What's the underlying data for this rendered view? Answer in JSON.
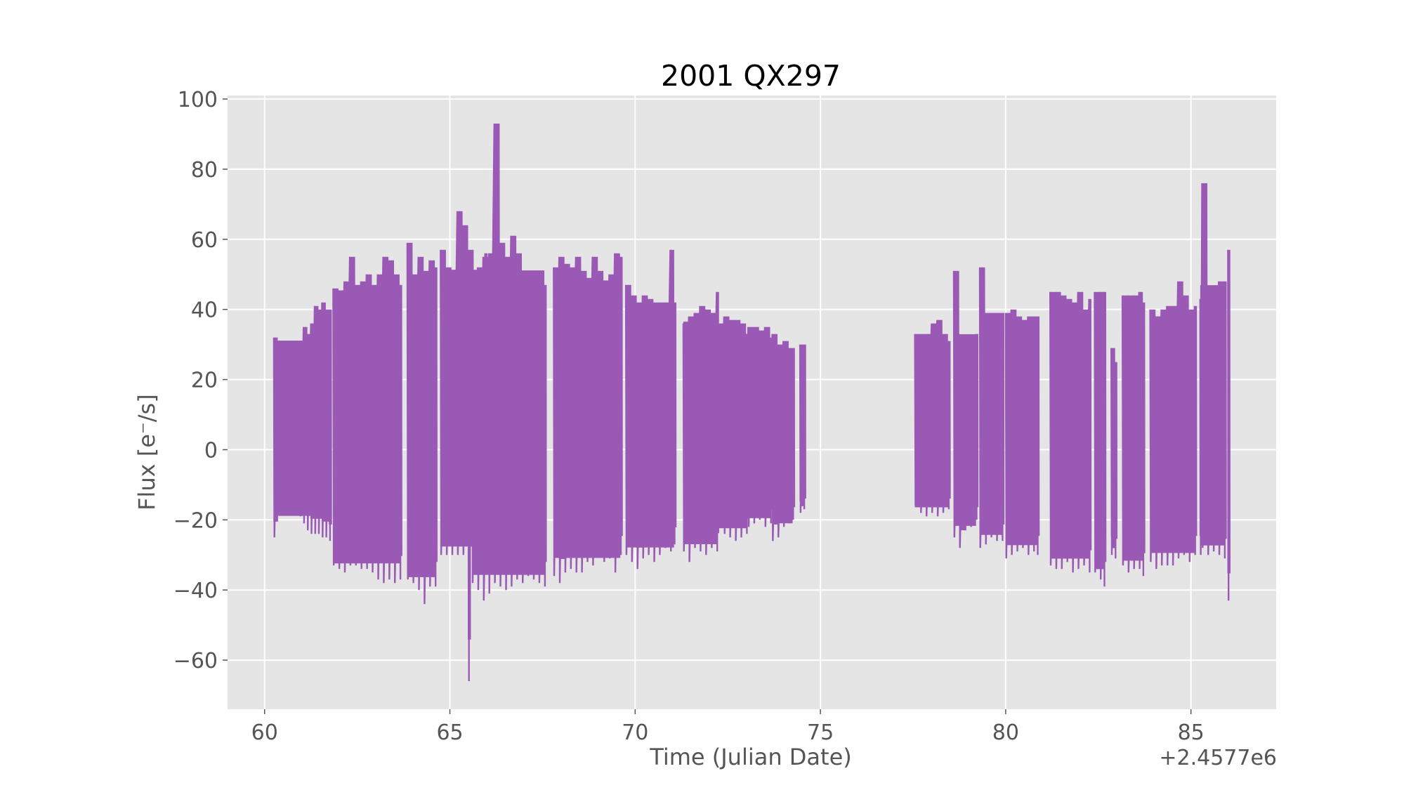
{
  "chart_data": {
    "type": "line",
    "title": "2001 QX297",
    "xlabel": "Time (Julian Date)",
    "ylabel": "Flux [e⁻/s]",
    "x_offset_label": "+2.4577e6",
    "xlim": [
      59,
      87.3
    ],
    "ylim": [
      -74,
      101
    ],
    "xticks": [
      60,
      65,
      70,
      75,
      80,
      85
    ],
    "xtick_labels": [
      "60",
      "65",
      "70",
      "75",
      "80",
      "85"
    ],
    "yticks": [
      -60,
      -40,
      -20,
      0,
      20,
      40,
      60,
      80,
      100
    ],
    "ytick_labels": [
      "−60",
      "−40",
      "−20",
      "0",
      "20",
      "40",
      "60",
      "80",
      "100"
    ],
    "grid": true,
    "series": [
      {
        "color": "#9b59b6",
        "segments": [
          {
            "x": [
              60.25,
              60.35,
              60.45,
              60.55,
              60.65,
              60.75,
              60.85,
              60.95,
              61.05,
              61.15,
              61.25,
              61.35,
              61.45,
              61.55,
              61.65,
              61.75
            ],
            "high": [
              32,
              27,
              27,
              29,
              30,
              29,
              30,
              30,
              35,
              33,
              36,
              41,
              40,
              42,
              40,
              40
            ],
            "low": [
              -25,
              -14,
              -13,
              -15,
              -15,
              -17,
              -18,
              -19,
              -21,
              -23,
              -24,
              -24,
              -24,
              -25,
              -25,
              -26
            ]
          },
          {
            "x": [
              61.85,
              62.0,
              62.15,
              62.3,
              62.45,
              62.6,
              62.75,
              62.9,
              63.05,
              63.2,
              63.35,
              63.5,
              63.65
            ],
            "high": [
              46,
              45,
              48,
              55,
              47,
              48,
              50,
              47,
              50,
              55,
              54,
              50,
              47
            ],
            "low": [
              -33,
              -34,
              -35,
              -33,
              -33,
              -34,
              -34,
              -35,
              -37,
              -38,
              -37,
              -38,
              -37
            ]
          },
          {
            "x": [
              63.85,
              64.0,
              64.15,
              64.3,
              64.45,
              64.6
            ],
            "high": [
              59,
              50,
              55,
              51,
              54,
              52
            ],
            "low": [
              -37,
              -38,
              -40,
              -44,
              -39,
              -39
            ]
          },
          {
            "x": [
              64.75,
              64.9,
              65.05,
              65.2,
              65.35,
              65.5,
              65.65,
              65.8,
              65.95
            ],
            "high": [
              57,
              52,
              50,
              68,
              64,
              57,
              48,
              50,
              56
            ]
          },
          {
            "x": [
              65.5
            ],
            "high": [
              49
            ],
            "low": [
              -66
            ]
          },
          {
            "x": [
              65.6,
              65.75,
              65.9,
              66.05,
              66.2,
              66.35,
              66.5,
              66.65,
              66.8,
              66.95,
              67.1,
              67.25,
              67.4,
              67.55
            ],
            "high": [
              50,
              52,
              55,
              56,
              93,
              59,
              55,
              61,
              56,
              50,
              48,
              50,
              46,
              47
            ],
            "low": [
              -38,
              -40,
              -43,
              -41,
              -38,
              -39,
              -40,
              -39,
              -37,
              -38,
              -36,
              -37,
              -38,
              -39
            ]
          },
          {
            "x": [
              67.8,
              67.95,
              68.1,
              68.25,
              68.4,
              68.55,
              68.7,
              68.85,
              69.0,
              69.15,
              69.3,
              69.45,
              69.6
            ],
            "high": [
              52,
              55,
              53,
              52,
              55,
              51,
              49,
              55,
              51,
              48,
              50,
              56,
              55
            ],
            "low": [
              -36,
              -38,
              -35,
              -34,
              -35,
              -35,
              -32,
              -33,
              -30,
              -32,
              -31,
              -35,
              -30
            ]
          },
          {
            "x": [
              69.75,
              69.9,
              70.05,
              70.2,
              70.35,
              70.5,
              70.65,
              70.8,
              70.95,
              71.05
            ],
            "high": [
              47,
              44,
              42,
              44,
              43,
              42,
              42,
              42,
              57,
              42
            ],
            "low": [
              -30,
              -32,
              -34,
              -31,
              -30,
              -32,
              -30,
              -28,
              -29,
              -27
            ]
          },
          {
            "x": [
              71.3,
              71.45,
              71.6,
              71.75,
              71.9,
              72.05,
              72.2
            ],
            "high": [
              36,
              38,
              39,
              41,
              40,
              39,
              45
            ],
            "low": [
              -29,
              -32,
              -28,
              -29,
              -30,
              -28,
              -29
            ]
          },
          {
            "x": [
              72.25,
              72.4,
              72.55,
              72.7,
              72.85,
              73.0
            ],
            "high": [
              36,
              38,
              37,
              37,
              36,
              33
            ],
            "low": [
              -22,
              -24,
              -25,
              -26,
              -25,
              -24
            ]
          },
          {
            "x": [
              73.05,
              73.2,
              73.35,
              73.5,
              73.65
            ],
            "high": [
              35,
              35,
              34,
              35,
              32
            ],
            "low": [
              -22,
              -21,
              -20,
              -22,
              -21
            ]
          },
          {
            "x": [
              73.7,
              73.85,
              74.0,
              74.15,
              74.25
            ],
            "high": [
              33,
              30,
              31,
              29,
              29
            ],
            "low": [
              -26,
              -25,
              -22,
              -21,
              -20
            ]
          },
          {
            "x": [
              74.45,
              74.55
            ],
            "high": [
              30,
              30
            ],
            "low": [
              -18,
              -17
            ]
          },
          {
            "x": [
              77.55,
              77.7,
              77.85,
              78.0,
              78.15,
              78.3,
              78.45
            ],
            "high": [
              33,
              33,
              33,
              36,
              37,
              33,
              31
            ],
            "low": [
              -16,
              -18,
              -19,
              -18,
              -19,
              -18,
              -17
            ]
          },
          {
            "x": [
              78.6,
              78.75,
              78.9,
              79.05,
              79.2
            ],
            "high": [
              51,
              31,
              32,
              32,
              33
            ],
            "low": [
              -25,
              -28,
              -23,
              -22,
              -20
            ]
          },
          {
            "x": [
              79.3,
              79.45,
              79.6,
              79.75,
              79.9
            ],
            "high": [
              52,
              39,
              39,
              39,
              39
            ],
            "low": [
              -28,
              -27,
              -25,
              -26,
              -26
            ]
          },
          {
            "x": [
              80.0,
              80.15,
              80.3,
              80.45,
              80.6,
              80.75,
              80.85
            ],
            "high": [
              39,
              40,
              38,
              37,
              38,
              38,
              38
            ],
            "low": [
              -31,
              -30,
              -29,
              -28,
              -30,
              -29,
              -30
            ]
          },
          {
            "x": [
              81.2,
              81.35,
              81.5,
              81.65,
              81.8,
              81.95,
              82.1,
              82.25
            ],
            "high": [
              45,
              45,
              44,
              43,
              42,
              45,
              40,
              43
            ],
            "low": [
              -33,
              -34,
              -34,
              -32,
              -35,
              -34,
              -33,
              -35
            ]
          },
          {
            "x": [
              82.4,
              82.55,
              82.65
            ],
            "high": [
              45,
              45,
              45
            ],
            "low": [
              -35,
              -37,
              -39
            ]
          },
          {
            "x": [
              82.85,
              82.95
            ],
            "high": [
              29,
              25
            ],
            "low": [
              -30,
              -31
            ]
          },
          {
            "x": [
              83.15,
              83.3,
              83.45,
              83.6,
              83.7
            ],
            "high": [
              44,
              44,
              44,
              45,
              42
            ],
            "low": [
              -33,
              -35,
              -34,
              -34,
              -36
            ]
          },
          {
            "x": [
              83.9,
              84.05,
              84.2,
              84.35,
              84.5,
              84.65,
              84.8,
              84.95,
              85.1
            ],
            "high": [
              40,
              37,
              40,
              41,
              41,
              48,
              44,
              40,
              41
            ],
            "low": [
              -32,
              -34,
              -33,
              -33,
              -33,
              -31,
              -30,
              -32,
              -30
            ]
          },
          {
            "x": [
              85.25,
              85.3,
              85.45,
              85.6,
              85.75,
              85.9
            ],
            "high": [
              43,
              76,
              45,
              46,
              48,
              48
            ],
            "low": [
              -30,
              -28,
              -30,
              -29,
              -30,
              -31
            ]
          },
          {
            "x": [
              86.0
            ],
            "high": [
              57
            ],
            "low": [
              -43
            ]
          }
        ]
      }
    ]
  }
}
